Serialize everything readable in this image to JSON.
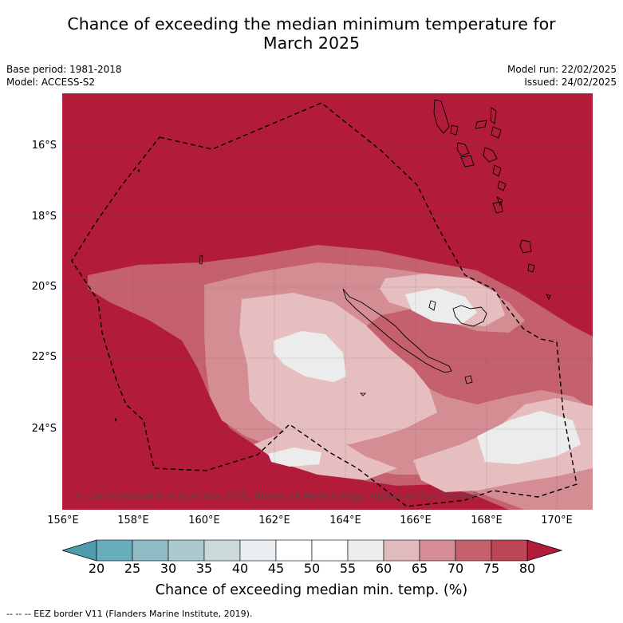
{
  "title_line1": "Chance of exceeding the median minimum temperature for",
  "title_line2": "March 2025",
  "meta": {
    "base_period": "Base period: 1981-2018",
    "model": "Model: ACCESS-S2",
    "model_run": "Model run: 22/02/2025",
    "issued": "Issued: 24/02/2025"
  },
  "map": {
    "lat_labels": [
      "16°S",
      "18°S",
      "20°S",
      "22°S",
      "24°S"
    ],
    "lon_labels": [
      "156°E",
      "158°E",
      "160°E",
      "162°E",
      "164°E",
      "166°E",
      "168°E",
      "170°E"
    ],
    "copyright": "© Commonwealth of Australia 2025, Bureau of Meteorology, supported by COSPPac",
    "colors": {
      "75_80": "#b31b3a",
      "70_75": "#c5616e",
      "65_70": "#d58d94",
      "60_65": "#e6bec0",
      "55_60": "#ececed"
    }
  },
  "colorbar": {
    "ticks": [
      "20",
      "25",
      "30",
      "35",
      "40",
      "45",
      "50",
      "55",
      "60",
      "65",
      "70",
      "75",
      "80"
    ],
    "colors": [
      "#68adbb",
      "#8fbbc4",
      "#acc9cd",
      "#cbd9da",
      "#e8eef0",
      "#ffffff",
      "#ffffff",
      "#ededee",
      "#e1babd",
      "#d58d94",
      "#c5616e",
      "#bc4556",
      "#b31b3a"
    ],
    "below_color": "#4d9daf",
    "label": "Chance of exceeding median min. temp. (%)"
  },
  "footnote": "--  --  -- EEZ border V11 (Flanders Marine Institute, 2019)."
}
